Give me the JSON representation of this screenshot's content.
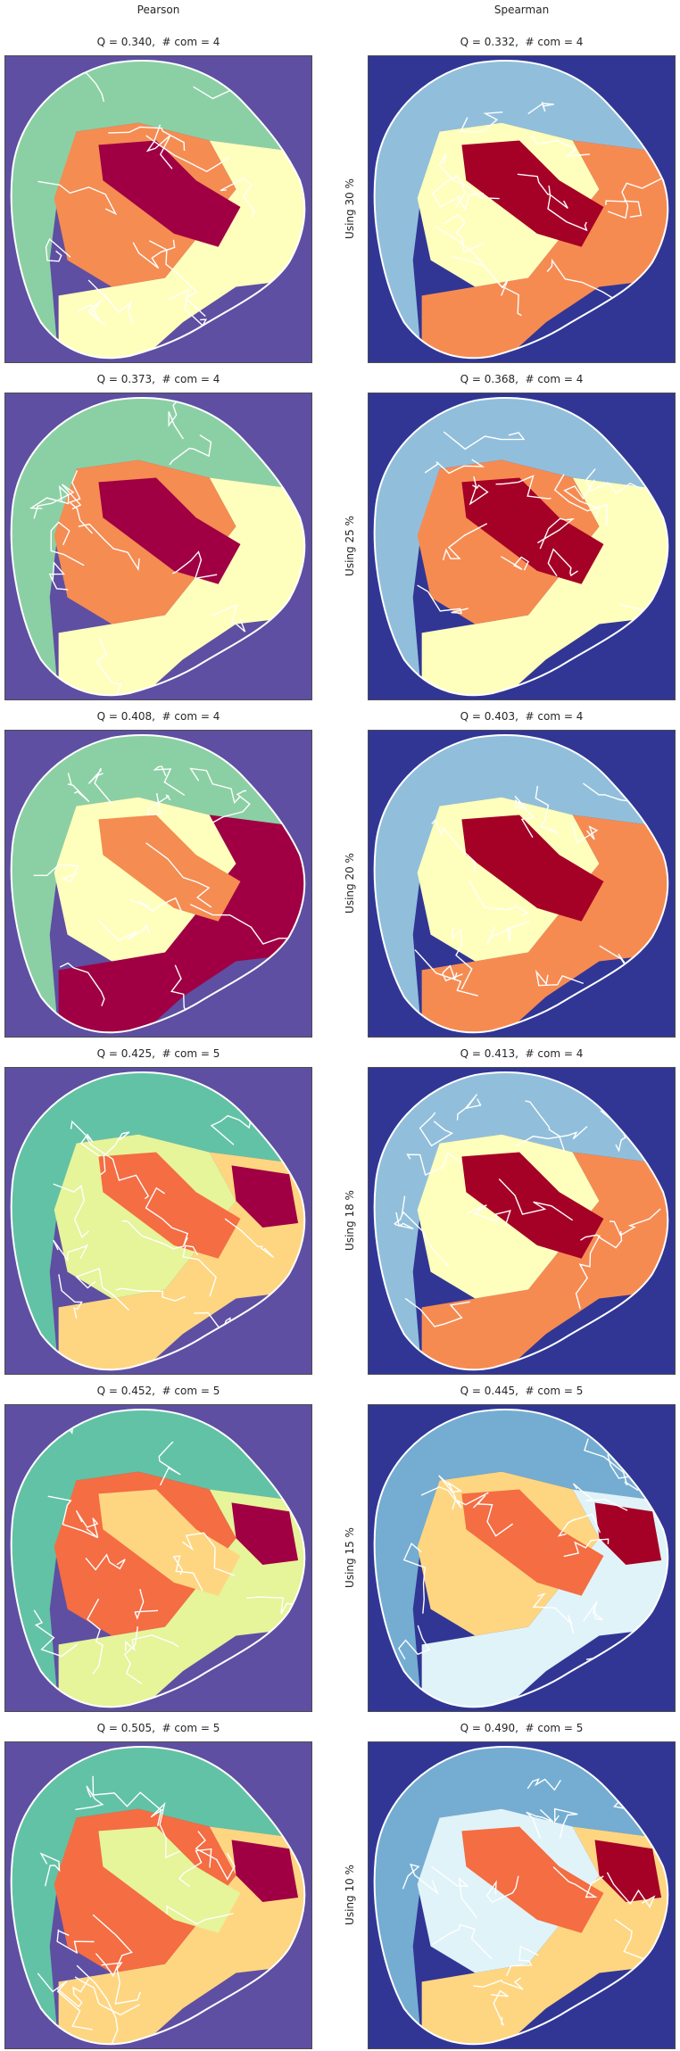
{
  "columns": [
    "Pearson",
    "Spearman"
  ],
  "rows": [
    {
      "label": "Using 30 %",
      "panels": [
        {
          "title": "Q = 0.340,  # com = 4",
          "palette": "pearson4",
          "regions": [
            "#8bd0a4",
            "#f58c52",
            "#a00043",
            "#ffffbd"
          ]
        },
        {
          "title": "Q = 0.332,  # com = 4",
          "palette": "spearman4",
          "regions": [
            "#91bfdb",
            "#ffffbd",
            "#a50026",
            "#f68b52"
          ]
        }
      ]
    },
    {
      "label": "Using 25 %",
      "panels": [
        {
          "title": "Q = 0.373,  # com = 4",
          "palette": "pearson4",
          "regions": [
            "#8bd0a4",
            "#f58c52",
            "#a00043",
            "#ffffbd"
          ]
        },
        {
          "title": "Q = 0.368,  # com = 4",
          "palette": "spearman4",
          "regions": [
            "#91bfdb",
            "#f68b52",
            "#a50026",
            "#ffffbd"
          ]
        }
      ]
    },
    {
      "label": "Using 20 %",
      "panels": [
        {
          "title": "Q = 0.408,  # com = 4",
          "palette": "pearson4",
          "regions": [
            "#8bd0a4",
            "#ffffbd",
            "#f58c52",
            "#a00043"
          ]
        },
        {
          "title": "Q = 0.403,  # com = 4",
          "palette": "spearman4",
          "regions": [
            "#91bfdb",
            "#ffffbd",
            "#a50026",
            "#f68b52"
          ]
        }
      ]
    },
    {
      "label": "Using 18 %",
      "panels": [
        {
          "title": "Q = 0.425,  # com = 5",
          "palette": "pearson5",
          "regions": [
            "#62c2a5",
            "#e6f49a",
            "#f46d43",
            "#fed681",
            "#a00043"
          ]
        },
        {
          "title": "Q = 0.413,  # com = 4",
          "palette": "spearman4",
          "regions": [
            "#91bfdb",
            "#ffffbd",
            "#a50026",
            "#f68b52"
          ]
        }
      ]
    },
    {
      "label": "Using 15 %",
      "panels": [
        {
          "title": "Q = 0.452,  # com = 5",
          "palette": "pearson5",
          "regions": [
            "#62c2a5",
            "#f46d43",
            "#fed681",
            "#e6f49a",
            "#a00043"
          ]
        },
        {
          "title": "Q = 0.445,  # com = 5",
          "palette": "spearman5",
          "regions": [
            "#74add1",
            "#fed681",
            "#f46d43",
            "#e0f3f8",
            "#a50026"
          ]
        }
      ]
    },
    {
      "label": "Using 10 %",
      "panels": [
        {
          "title": "Q = 0.505,  # com = 5",
          "palette": "pearson5",
          "regions": [
            "#62c2a5",
            "#f46d43",
            "#e6f49a",
            "#fed681",
            "#a00043"
          ]
        },
        {
          "title": "Q = 0.490,  # com = 5",
          "palette": "spearman5",
          "regions": [
            "#74add1",
            "#e0f3f8",
            "#f46d43",
            "#fed681",
            "#a50026"
          ]
        }
      ]
    }
  ],
  "backgrounds": {
    "pearson": "#5e4fa2",
    "spearman": "#313695"
  },
  "outline_color": "#ffffff"
}
